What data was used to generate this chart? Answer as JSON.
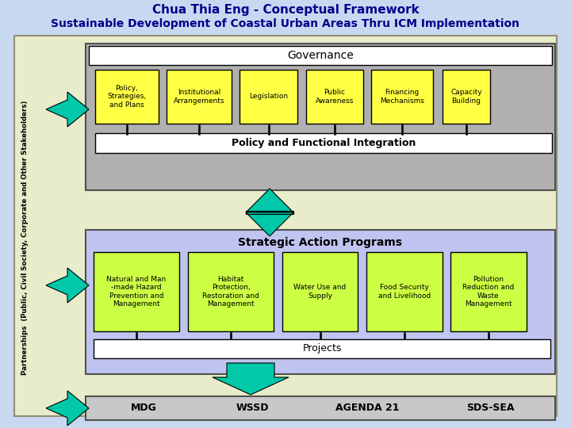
{
  "title1": "Chua Thia Eng - Conceptual Framework",
  "title2": "Sustainable Development of Coastal Urban Areas Thru ICM Implementation",
  "bg_color": "#c8d8f0",
  "outer_bg": "#e8ecca",
  "governance_bg": "#b0b0b0",
  "sap_bg": "#c0c4f0",
  "white_box": "#ffffff",
  "yellow_box": "#ffff44",
  "green_box": "#ccff44",
  "teal_color": "#00c8a8",
  "bottom_bg": "#c8c8c8",
  "governance_title": "Governance",
  "governance_boxes": [
    "Policy,\nStrategies,\nand Plans",
    "Institutional\nArrangements",
    "Legislation",
    "Public\nAwareness",
    "Financing\nMechanisms",
    "Capacity\nBuilding"
  ],
  "policy_integration": "Policy and Functional Integration",
  "sap_title": "Strategic Action Programs",
  "sap_boxes": [
    "Natural and Man\n-made Hazard\nPrevention and\nManagement",
    "Habitat\nProtection,\nRestoration and\nManagement",
    "Water Use and\nSupply",
    "Food Security\nand Livelihood",
    "Pollution\nReduction and\nWaste\nManagement"
  ],
  "projects": "Projects",
  "bottom_boxes": [
    "MDG",
    "WSSD",
    "AGENDA 21",
    "SDS-SEA"
  ],
  "side_label": "Partnerships  (Public, Civil Society, Corporate and Other Stakeholders)"
}
